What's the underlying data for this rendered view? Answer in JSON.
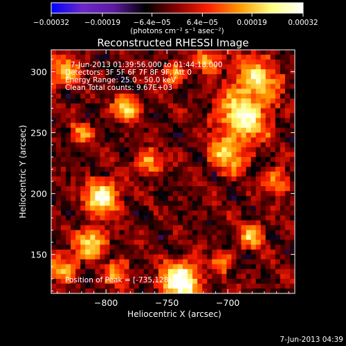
{
  "chart_data": {
    "type": "heatmap",
    "title": "Reconstructed RHESSI Image",
    "xlabel": "Heliocentric X (arcsec)",
    "ylabel": "Heliocentric Y (arcsec)",
    "xlim": [
      -845,
      -645
    ],
    "ylim": [
      118,
      318
    ],
    "x_ticks": [
      -800,
      -750,
      -700
    ],
    "x_tick_labels": [
      "−800",
      "−750",
      "−700"
    ],
    "y_ticks": [
      150,
      200,
      250,
      300
    ],
    "y_tick_labels": [
      "150",
      "200",
      "250",
      "300"
    ],
    "grid": false,
    "colorbar": {
      "min": -0.00032,
      "max": 0.00032,
      "ticks": [
        -0.00032,
        -0.00019,
        -6.4e-05,
        6.4e-05,
        0.00019,
        0.00032
      ],
      "tick_labels": [
        "−0.00032",
        "−0.00019",
        "−6.4e−05",
        "6.4e−05",
        "0.00019",
        "0.00032"
      ],
      "unit_label": "(photons cm⁻² s⁻¹ asec⁻²)",
      "colormap": [
        "#0000ff",
        "#6a28c8",
        "#5c1aa0",
        "#000000",
        "#8a0000",
        "#ff2000",
        "#ff9a00",
        "#ffff80",
        "#ffffff"
      ]
    },
    "annotations": [
      "7-Jun-2013 01:39:56.000 to 01:44:18.000",
      "Detectors: 3F 5F 6F 7F 8F 9F, Att 0",
      "Energy Range: 25.0 - 50.0 keV",
      "Clean     Total counts: 9.67E+03"
    ],
    "peak_label": "Position of Peak = [-735,128]",
    "peak_position": [
      -735,
      128
    ],
    "sources": [
      {
        "x": -738,
        "y": 128,
        "amp": 1.0,
        "sigma": 9
      },
      {
        "x": -803,
        "y": 197,
        "amp": 0.78,
        "sigma": 8
      },
      {
        "x": -688,
        "y": 262,
        "amp": 0.7,
        "sigma": 12
      },
      {
        "x": -678,
        "y": 292,
        "amp": 0.55,
        "sigma": 11
      },
      {
        "x": -700,
        "y": 232,
        "amp": 0.45,
        "sigma": 9
      },
      {
        "x": -812,
        "y": 160,
        "amp": 0.6,
        "sigma": 7
      },
      {
        "x": -783,
        "y": 270,
        "amp": 0.55,
        "sigma": 6
      },
      {
        "x": -835,
        "y": 140,
        "amp": 0.5,
        "sigma": 6
      },
      {
        "x": -835,
        "y": 300,
        "amp": 0.48,
        "sigma": 7
      },
      {
        "x": -765,
        "y": 225,
        "amp": 0.45,
        "sigma": 6
      },
      {
        "x": -680,
        "y": 165,
        "amp": 0.4,
        "sigma": 6
      },
      {
        "x": -715,
        "y": 310,
        "amp": 0.42,
        "sigma": 6
      },
      {
        "x": -660,
        "y": 210,
        "amp": 0.35,
        "sigma": 6
      },
      {
        "x": -745,
        "y": 298,
        "amp": 0.3,
        "sigma": 6
      },
      {
        "x": -790,
        "y": 135,
        "amp": 0.35,
        "sigma": 6
      },
      {
        "x": -820,
        "y": 250,
        "amp": 0.3,
        "sigma": 5
      },
      {
        "x": -705,
        "y": 145,
        "amp": 0.3,
        "sigma": 5
      }
    ]
  },
  "footer": {
    "timestamp": "7-Jun-2013 04:39"
  }
}
